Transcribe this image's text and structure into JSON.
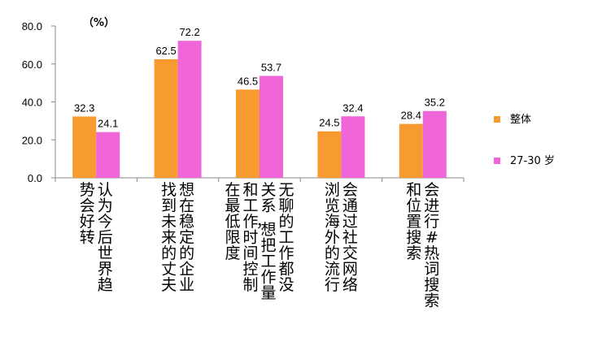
{
  "chart_data": {
    "type": "bar",
    "unit_label": "（%）",
    "ylim": [
      0,
      80
    ],
    "yticks": [
      "0.0",
      "20.0",
      "40.0",
      "60.0",
      "80.0"
    ],
    "grid": false,
    "legend_position": "right",
    "categories": [
      {
        "label": "认为今后世界趋势会好转",
        "columns": [
          "认为今后世界趋",
          "势会好转"
        ]
      },
      {
        "label": "想在稳定的企业找到未来的丈夫",
        "columns": [
          "想在稳定的企业",
          "找到未来的丈夫"
        ]
      },
      {
        "label": "无聊的工作都没关系，想把工作量和工作时间控制在最低限度",
        "columns": [
          "无聊的工作都没",
          "关系，想把工作量",
          "和工作时间控制",
          "在最低限度"
        ]
      },
      {
        "label": "会通过社交网络浏览海外的流行",
        "columns": [
          "会通过社交网络",
          "浏览海外的流行"
        ]
      },
      {
        "label": "会进行#热词搜索和位置搜索",
        "columns": [
          "会进行#热词搜索",
          "和位置搜索"
        ]
      }
    ],
    "series": [
      {
        "name": "整体",
        "color": "#f79a2f",
        "values": [
          32.3,
          62.5,
          46.5,
          24.5,
          28.4
        ],
        "labels": [
          "32.3",
          "62.5",
          "46.5",
          "24.5",
          "28.4"
        ]
      },
      {
        "name": "27-30 岁",
        "color": "#f066d8",
        "values": [
          24.1,
          72.2,
          53.7,
          32.4,
          35.2
        ],
        "labels": [
          "24.1",
          "72.2",
          "53.7",
          "32.4",
          "35.2"
        ]
      }
    ]
  }
}
